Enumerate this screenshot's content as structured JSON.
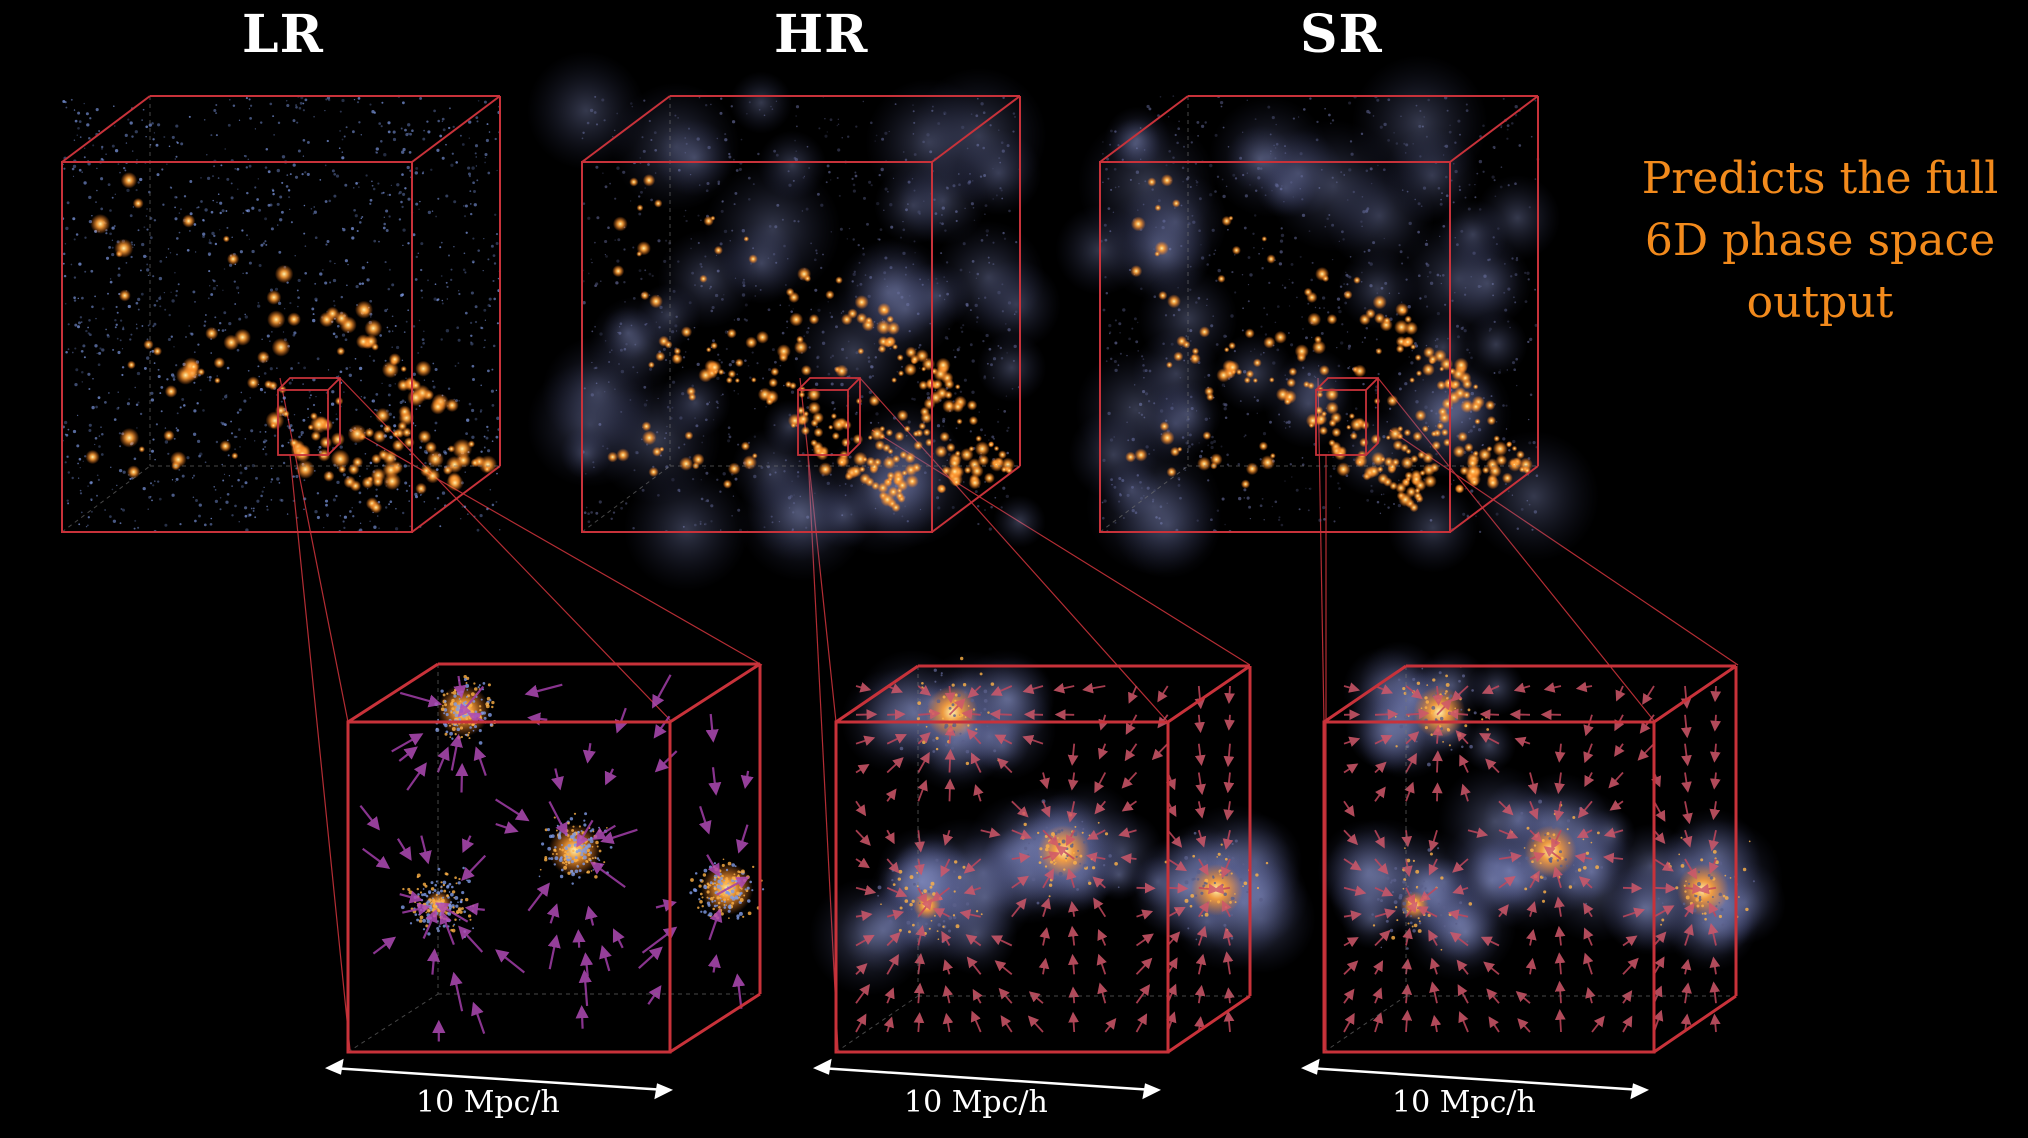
{
  "panels": [
    {
      "id": "lr",
      "title": "LR",
      "scale_label": "10 Mpc/h",
      "particle_color": "#7f9be6",
      "arrow_color": "#a23ea8"
    },
    {
      "id": "hr",
      "title": "HR",
      "scale_label": "10 Mpc/h",
      "particle_color": "#5a5f8a",
      "arrow_color": "#c2475c"
    },
    {
      "id": "sr",
      "title": "SR",
      "scale_label": "10 Mpc/h",
      "particle_color": "#5a5f8a",
      "arrow_color": "#c2475c"
    }
  ],
  "caption": {
    "lines": [
      "Predicts the full",
      "6D phase space",
      "output"
    ]
  },
  "colors": {
    "box_edge": "#c8323a",
    "halo": "#ffa23a",
    "caption": "#f28a1c",
    "background": "#000000"
  }
}
